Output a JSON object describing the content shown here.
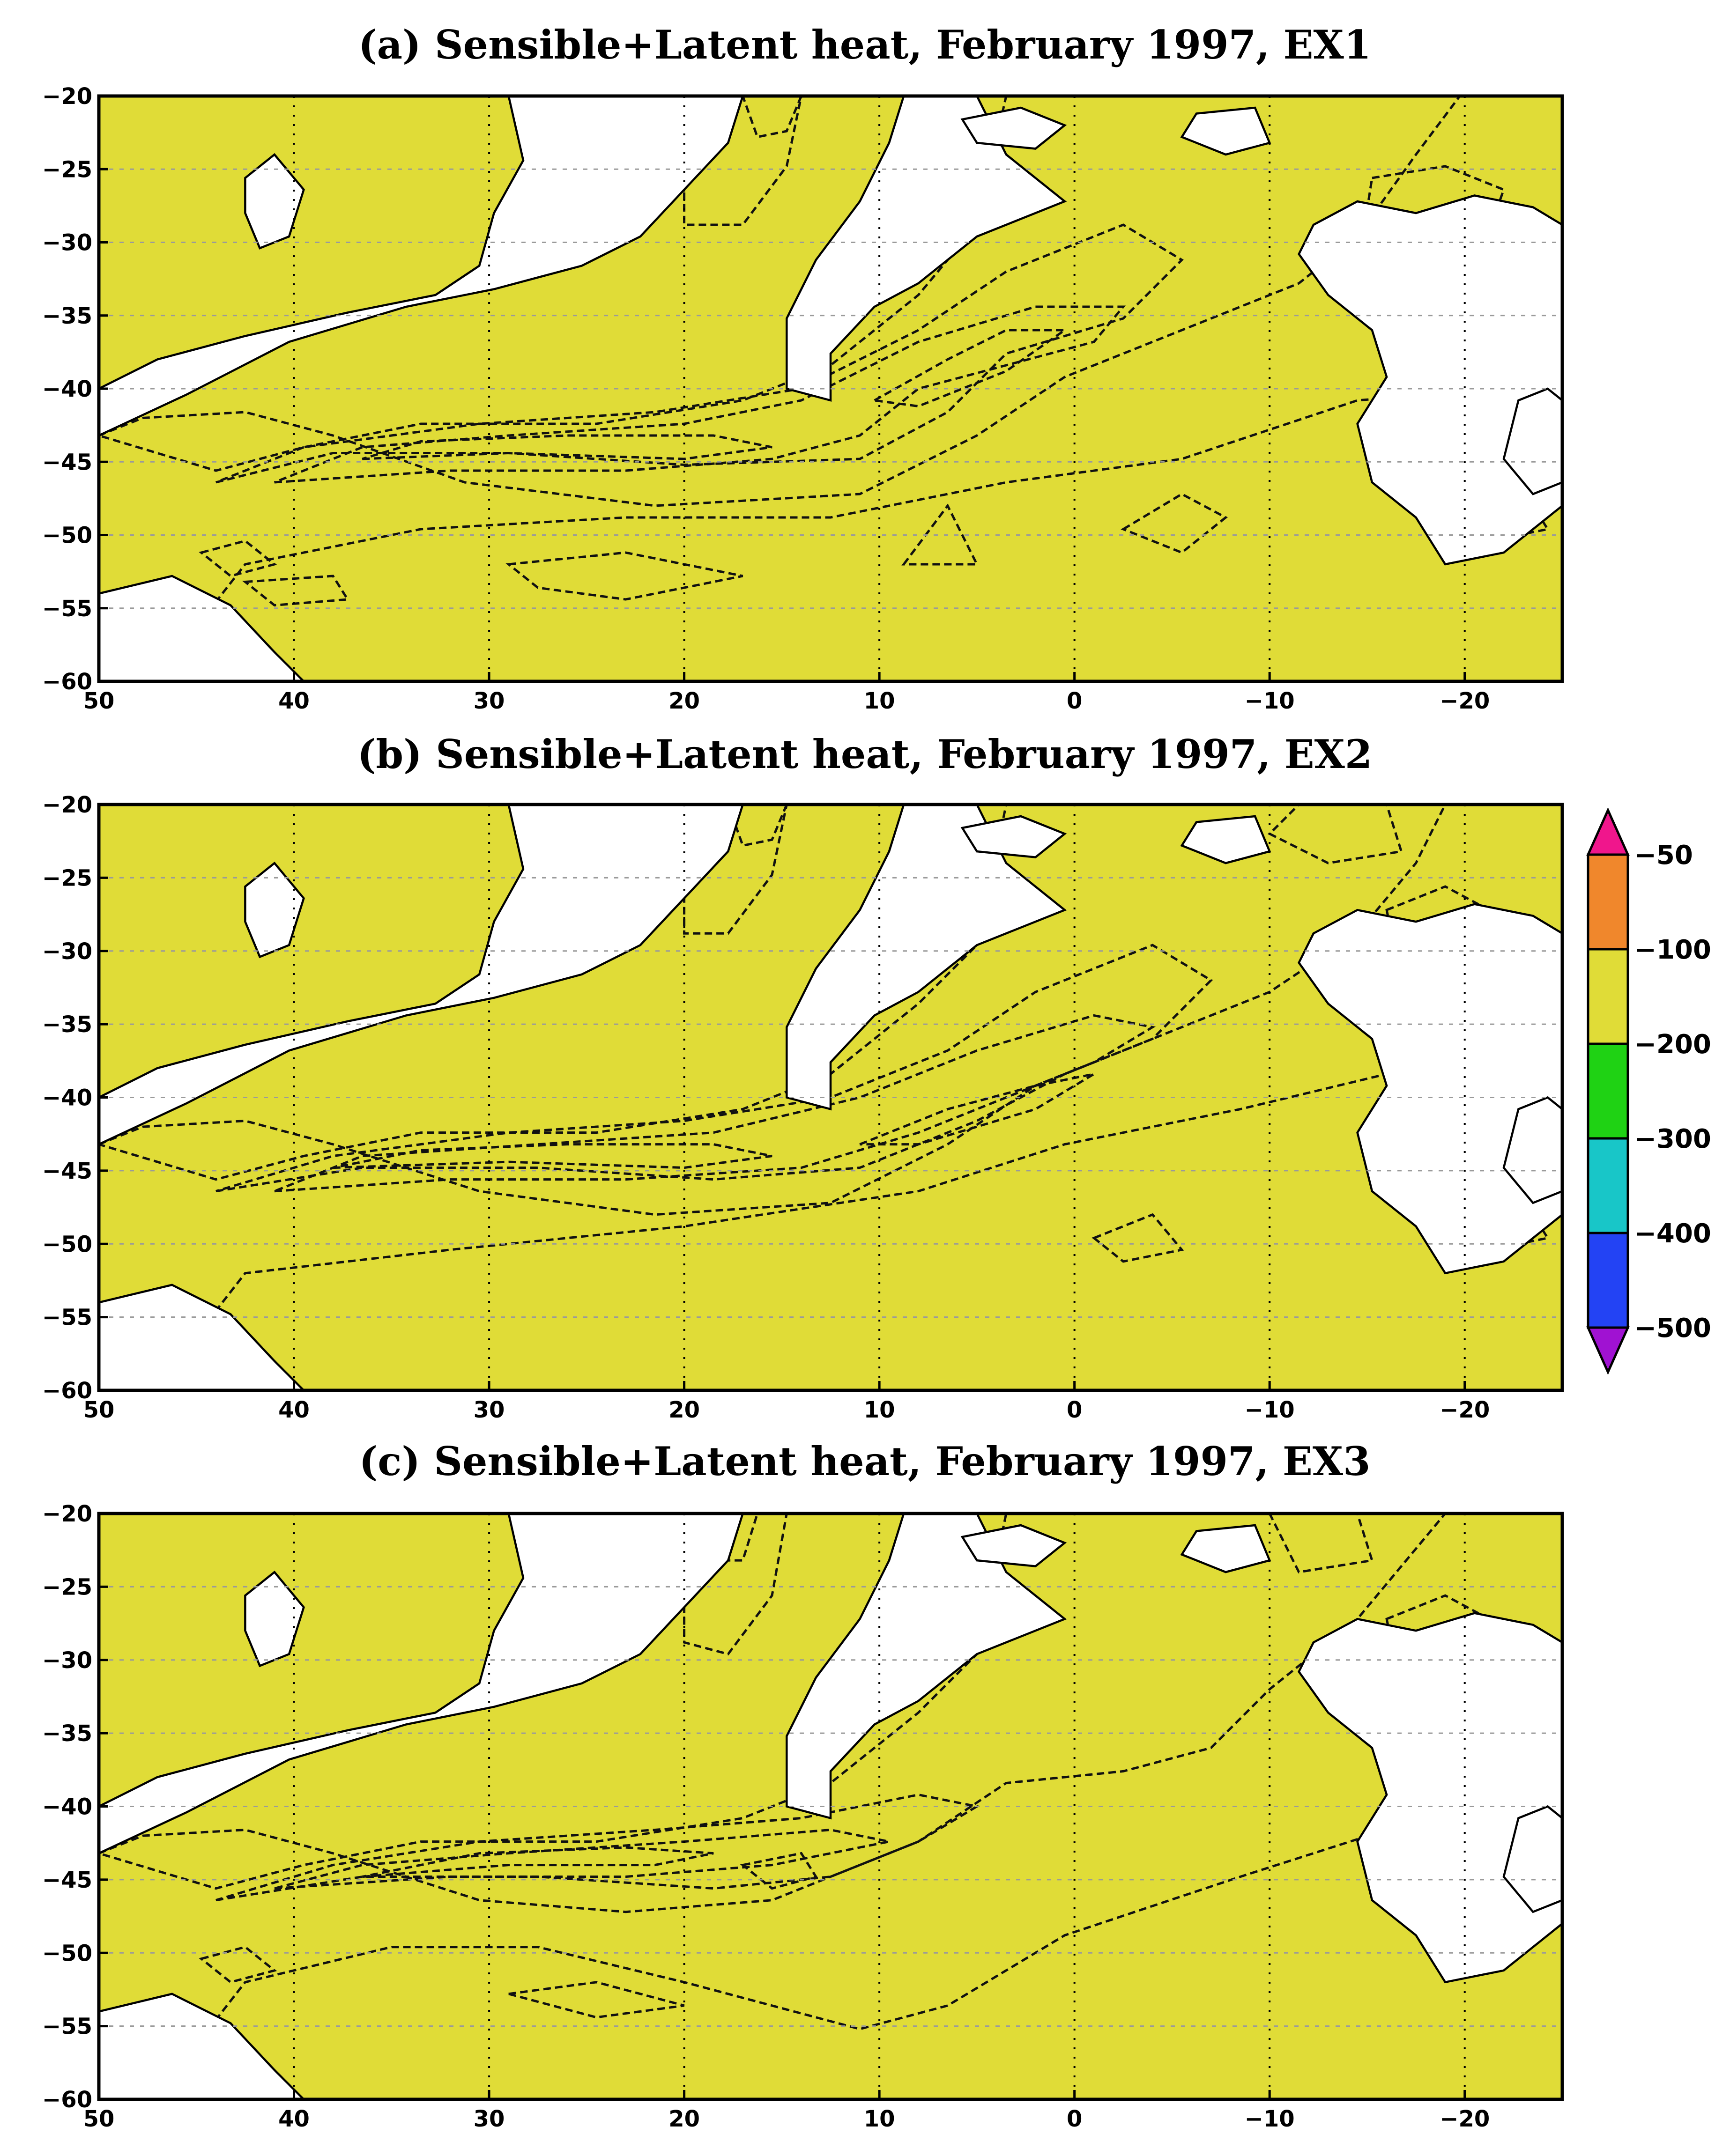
{
  "figure": {
    "colors": {
      "gt_-100": "#f0872c",
      "-200_-100": "#e0dc37",
      "-300_-200": "#1fd214",
      "-400_-300": "#18c6c8",
      "-500_-400": "#2343f4",
      "lt_-500": "#a012d2",
      "gt_-50": "#f0168c",
      "land": "#ffffff"
    }
  },
  "colorbar": {
    "levels": [
      "-50",
      "-100",
      "-200",
      "-300",
      "-400",
      "-500"
    ],
    "colors_top_to_bottom": [
      "#f0168c",
      "#f0872c",
      "#e0dc37",
      "#1fd214",
      "#18c6c8",
      "#2343f4",
      "#a012d2"
    ],
    "extend": "both",
    "placement": "right of panel (b)"
  },
  "chart_data": [
    {
      "type": "heatmap",
      "title": "(a) Sensible+Latent heat, February 1997, EX1",
      "x_ticks": [
        "50",
        "40",
        "30",
        "20",
        "10",
        "0",
        "-10",
        "-20"
      ],
      "y_ticks": [
        "-20",
        "-25",
        "-30",
        "-35",
        "-40",
        "-45",
        "-50",
        "-55",
        "-60"
      ],
      "xlim": [
        50,
        -25
      ],
      "ylim": [
        -60,
        -20
      ],
      "contour_levels": [
        -50,
        -100,
        -200,
        -300,
        -400,
        -500
      ],
      "features": [
        {
          "field": "lt_-500",
          "x": 23,
          "y": -44.5
        },
        {
          "field": "lt_-500",
          "x": 8,
          "y": -39.5
        },
        {
          "field": "lt_-500",
          "x": 11,
          "y": -21
        },
        {
          "field": "gt_-50",
          "x": 26,
          "y": -53
        },
        {
          "field": "gt_-50",
          "x": 17,
          "y": -52
        },
        {
          "field": "gt_-50",
          "x": -14,
          "y": -27.5
        }
      ]
    },
    {
      "type": "heatmap",
      "title": "(b) Sensible+Latent heat, February 1997, EX2",
      "x_ticks": [
        "50",
        "40",
        "30",
        "20",
        "10",
        "0",
        "-10",
        "-20"
      ],
      "y_ticks": [
        "-20",
        "-25",
        "-30",
        "-35",
        "-40",
        "-45",
        "-50",
        "-55",
        "-60"
      ],
      "xlim": [
        50,
        -25
      ],
      "ylim": [
        -60,
        -20
      ],
      "contour_levels": [
        -50,
        -100,
        -200,
        -300,
        -400,
        -500
      ],
      "features": [
        {
          "field": "lt_-500",
          "x": 25,
          "y": -44.5
        },
        {
          "field": "lt_-500",
          "x": 9,
          "y": -42
        },
        {
          "field": "lt_-500",
          "x": 12,
          "y": -21
        },
        {
          "field": "gt_-50",
          "x": 0,
          "y": -50
        },
        {
          "field": "gt_-50",
          "x": -9,
          "y": -22
        }
      ]
    },
    {
      "type": "heatmap",
      "title": "(c) Sensible+Latent heat, February 1997, EX3",
      "x_ticks": [
        "50",
        "40",
        "30",
        "20",
        "10",
        "0",
        "-10",
        "-20"
      ],
      "y_ticks": [
        "-20",
        "-25",
        "-30",
        "-35",
        "-40",
        "-45",
        "-50",
        "-55",
        "-60"
      ],
      "xlim": [
        50,
        -25
      ],
      "ylim": [
        -60,
        -20
      ],
      "contour_levels": [
        -50,
        -100,
        -200,
        -300,
        -400,
        -500
      ],
      "features": [
        {
          "field": "lt_-500",
          "x": 28,
          "y": -44
        },
        {
          "field": "lt_-500",
          "x": 20,
          "y": -44.5
        },
        {
          "field": "gt_-50",
          "x": 23,
          "y": -54.3
        },
        {
          "field": "gt_-50",
          "x": 15,
          "y": -45
        },
        {
          "field": "gt_-50",
          "x": -9,
          "y": -21.5
        },
        {
          "field": "gt_-50",
          "x": -15,
          "y": -29
        }
      ]
    }
  ]
}
